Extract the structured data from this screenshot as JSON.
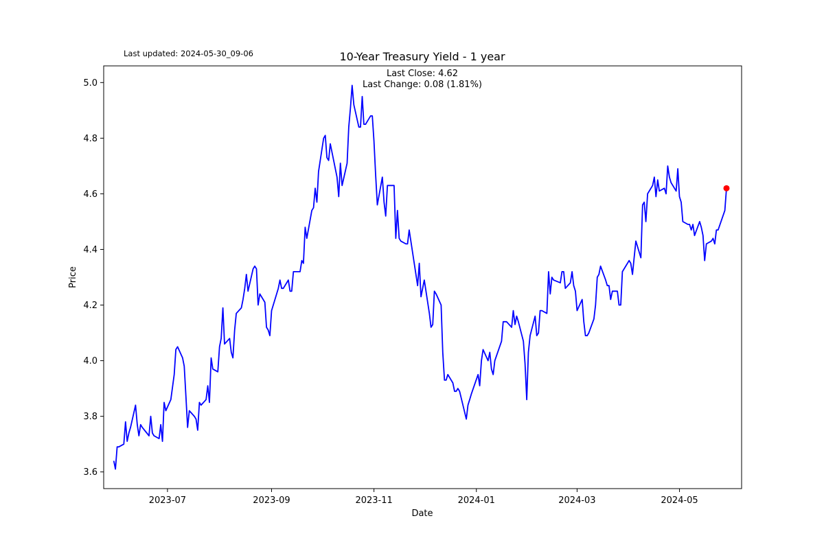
{
  "last_updated": "Last updated: 2024-05-30_09-06",
  "chart_data": {
    "type": "line",
    "title": "10-Year Treasury Yield - 1 year",
    "xlabel": "Date",
    "ylabel": "Price",
    "annotation_close": "Last Close: 4.62",
    "annotation_change": "Last Change: 0.08 (1.81%)",
    "line_color": "#0000ff",
    "marker_color": "#ff0000",
    "ylim": [
      3.54,
      5.06
    ],
    "xlim": [
      "2023-05-24",
      "2024-06-07"
    ],
    "y_ticks": [
      3.6,
      3.8,
      4.0,
      4.2,
      4.4,
      4.6,
      4.8,
      5.0
    ],
    "y_tick_labels": [
      "3.6",
      "3.8",
      "4.0",
      "4.2",
      "4.4",
      "4.6",
      "4.8",
      "5.0"
    ],
    "x_ticks": [
      "2023-07-01",
      "2023-09-01",
      "2023-11-01",
      "2024-01-01",
      "2024-03-01",
      "2024-05-01"
    ],
    "x_tick_labels": [
      "2023-07",
      "2023-09",
      "2023-11",
      "2024-01",
      "2024-03",
      "2024-05"
    ],
    "grid": false,
    "series": [
      {
        "x": [
          "2023-05-30",
          "2023-05-31",
          "2023-06-01",
          "2023-06-02",
          "2023-06-05",
          "2023-06-06",
          "2023-06-07",
          "2023-06-08",
          "2023-06-09",
          "2023-06-12",
          "2023-06-13",
          "2023-06-14",
          "2023-06-15",
          "2023-06-16",
          "2023-06-20",
          "2023-06-21",
          "2023-06-22",
          "2023-06-23",
          "2023-06-26",
          "2023-06-27",
          "2023-06-28",
          "2023-06-29",
          "2023-06-30",
          "2023-07-03",
          "2023-07-05",
          "2023-07-06",
          "2023-07-07",
          "2023-07-10",
          "2023-07-11",
          "2023-07-12",
          "2023-07-13",
          "2023-07-14",
          "2023-07-17",
          "2023-07-18",
          "2023-07-19",
          "2023-07-20",
          "2023-07-21",
          "2023-07-24",
          "2023-07-25",
          "2023-07-26",
          "2023-07-27",
          "2023-07-28",
          "2023-07-31",
          "2023-08-01",
          "2023-08-02",
          "2023-08-03",
          "2023-08-04",
          "2023-08-07",
          "2023-08-08",
          "2023-08-09",
          "2023-08-10",
          "2023-08-11",
          "2023-08-14",
          "2023-08-15",
          "2023-08-16",
          "2023-08-17",
          "2023-08-18",
          "2023-08-21",
          "2023-08-22",
          "2023-08-23",
          "2023-08-24",
          "2023-08-25",
          "2023-08-28",
          "2023-08-29",
          "2023-08-30",
          "2023-08-31",
          "2023-09-01",
          "2023-09-05",
          "2023-09-06",
          "2023-09-07",
          "2023-09-08",
          "2023-09-11",
          "2023-09-12",
          "2023-09-13",
          "2023-09-14",
          "2023-09-15",
          "2023-09-18",
          "2023-09-19",
          "2023-09-20",
          "2023-09-21",
          "2023-09-22",
          "2023-09-25",
          "2023-09-26",
          "2023-09-27",
          "2023-09-28",
          "2023-09-29",
          "2023-10-02",
          "2023-10-03",
          "2023-10-04",
          "2023-10-05",
          "2023-10-06",
          "2023-10-10",
          "2023-10-11",
          "2023-10-12",
          "2023-10-13",
          "2023-10-16",
          "2023-10-17",
          "2023-10-18",
          "2023-10-19",
          "2023-10-20",
          "2023-10-23",
          "2023-10-24",
          "2023-10-25",
          "2023-10-26",
          "2023-10-27",
          "2023-10-30",
          "2023-10-31",
          "2023-11-01",
          "2023-11-02",
          "2023-11-03",
          "2023-11-06",
          "2023-11-07",
          "2023-11-08",
          "2023-11-09",
          "2023-11-10",
          "2023-11-13",
          "2023-11-14",
          "2023-11-15",
          "2023-11-16",
          "2023-11-17",
          "2023-11-20",
          "2023-11-21",
          "2023-11-22",
          "2023-11-24",
          "2023-11-27",
          "2023-11-28",
          "2023-11-29",
          "2023-11-30",
          "2023-12-01",
          "2023-12-04",
          "2023-12-05",
          "2023-12-06",
          "2023-12-07",
          "2023-12-08",
          "2023-12-11",
          "2023-12-12",
          "2023-12-13",
          "2023-12-14",
          "2023-12-15",
          "2023-12-18",
          "2023-12-19",
          "2023-12-20",
          "2023-12-21",
          "2023-12-22",
          "2023-12-26",
          "2023-12-27",
          "2023-12-28",
          "2023-12-29",
          "2024-01-02",
          "2024-01-03",
          "2024-01-04",
          "2024-01-05",
          "2024-01-08",
          "2024-01-09",
          "2024-01-10",
          "2024-01-11",
          "2024-01-12",
          "2024-01-16",
          "2024-01-17",
          "2024-01-18",
          "2024-01-19",
          "2024-01-22",
          "2024-01-23",
          "2024-01-24",
          "2024-01-25",
          "2024-01-26",
          "2024-01-29",
          "2024-01-30",
          "2024-01-31",
          "2024-02-01",
          "2024-02-02",
          "2024-02-05",
          "2024-02-06",
          "2024-02-07",
          "2024-02-08",
          "2024-02-09",
          "2024-02-12",
          "2024-02-13",
          "2024-02-14",
          "2024-02-15",
          "2024-02-16",
          "2024-02-20",
          "2024-02-21",
          "2024-02-22",
          "2024-02-23",
          "2024-02-26",
          "2024-02-27",
          "2024-02-28",
          "2024-02-29",
          "2024-03-01",
          "2024-03-04",
          "2024-03-05",
          "2024-03-06",
          "2024-03-07",
          "2024-03-08",
          "2024-03-11",
          "2024-03-12",
          "2024-03-13",
          "2024-03-14",
          "2024-03-15",
          "2024-03-18",
          "2024-03-19",
          "2024-03-20",
          "2024-03-21",
          "2024-03-22",
          "2024-03-25",
          "2024-03-26",
          "2024-03-27",
          "2024-03-28",
          "2024-04-01",
          "2024-04-02",
          "2024-04-03",
          "2024-04-04",
          "2024-04-05",
          "2024-04-08",
          "2024-04-09",
          "2024-04-10",
          "2024-04-11",
          "2024-04-12",
          "2024-04-15",
          "2024-04-16",
          "2024-04-17",
          "2024-04-18",
          "2024-04-19",
          "2024-04-22",
          "2024-04-23",
          "2024-04-24",
          "2024-04-25",
          "2024-04-26",
          "2024-04-29",
          "2024-04-30",
          "2024-05-01",
          "2024-05-02",
          "2024-05-03",
          "2024-05-06",
          "2024-05-07",
          "2024-05-08",
          "2024-05-09",
          "2024-05-10",
          "2024-05-13",
          "2024-05-14",
          "2024-05-15",
          "2024-05-16",
          "2024-05-17",
          "2024-05-20",
          "2024-05-21",
          "2024-05-22",
          "2024-05-23",
          "2024-05-24",
          "2024-05-28",
          "2024-05-29"
        ],
        "y": [
          3.64,
          3.61,
          3.69,
          3.69,
          3.7,
          3.78,
          3.71,
          3.74,
          3.76,
          3.84,
          3.77,
          3.73,
          3.77,
          3.76,
          3.73,
          3.8,
          3.74,
          3.73,
          3.72,
          3.77,
          3.71,
          3.85,
          3.82,
          3.86,
          3.95,
          4.04,
          4.05,
          4.01,
          3.98,
          3.87,
          3.76,
          3.82,
          3.8,
          3.79,
          3.75,
          3.85,
          3.84,
          3.86,
          3.91,
          3.85,
          4.01,
          3.97,
          3.96,
          4.05,
          4.08,
          4.19,
          4.06,
          4.08,
          4.03,
          4.01,
          4.11,
          4.17,
          4.19,
          4.22,
          4.26,
          4.31,
          4.25,
          4.33,
          4.34,
          4.33,
          4.2,
          4.24,
          4.21,
          4.12,
          4.11,
          4.09,
          4.18,
          4.26,
          4.29,
          4.26,
          4.26,
          4.29,
          4.25,
          4.25,
          4.32,
          4.32,
          4.32,
          4.36,
          4.35,
          4.48,
          4.44,
          4.54,
          4.55,
          4.62,
          4.57,
          4.68,
          4.8,
          4.81,
          4.73,
          4.72,
          4.78,
          4.66,
          4.59,
          4.71,
          4.63,
          4.71,
          4.84,
          4.91,
          4.99,
          4.92,
          4.84,
          4.84,
          4.95,
          4.85,
          4.85,
          4.88,
          4.88,
          4.79,
          4.67,
          4.56,
          4.66,
          4.57,
          4.52,
          4.63,
          4.63,
          4.63,
          4.44,
          4.54,
          4.44,
          4.43,
          4.42,
          4.42,
          4.47,
          4.39,
          4.27,
          4.35,
          4.23,
          4.26,
          4.29,
          4.17,
          4.12,
          4.13,
          4.25,
          4.24,
          4.2,
          4.03,
          3.93,
          3.93,
          3.95,
          3.92,
          3.89,
          3.89,
          3.9,
          3.89,
          3.79,
          3.84,
          3.86,
          3.88,
          3.95,
          3.91,
          4.0,
          4.04,
          4.0,
          4.03,
          3.97,
          3.95,
          4.0,
          4.07,
          4.14,
          4.14,
          4.14,
          4.12,
          4.18,
          4.13,
          4.16,
          4.14,
          4.07,
          3.99,
          3.86,
          4.03,
          4.09,
          4.16,
          4.09,
          4.1,
          4.18,
          4.18,
          4.17,
          4.32,
          4.24,
          4.3,
          4.29,
          4.28,
          4.32,
          4.32,
          4.26,
          4.28,
          4.32,
          4.27,
          4.25,
          4.18,
          4.22,
          4.14,
          4.09,
          4.09,
          4.1,
          4.15,
          4.2,
          4.3,
          4.31,
          4.34,
          4.29,
          4.27,
          4.27,
          4.22,
          4.25,
          4.25,
          4.2,
          4.2,
          4.32,
          4.36,
          4.35,
          4.31,
          4.37,
          4.43,
          4.37,
          4.56,
          4.57,
          4.5,
          4.6,
          4.63,
          4.66,
          4.59,
          4.65,
          4.61,
          4.62,
          4.6,
          4.7,
          4.66,
          4.64,
          4.61,
          4.69,
          4.59,
          4.57,
          4.5,
          4.49,
          4.49,
          4.47,
          4.49,
          4.45,
          4.5,
          4.48,
          4.45,
          4.36,
          4.42,
          4.43,
          4.44,
          4.42,
          4.47,
          4.47,
          4.54,
          4.62
        ]
      }
    ]
  }
}
